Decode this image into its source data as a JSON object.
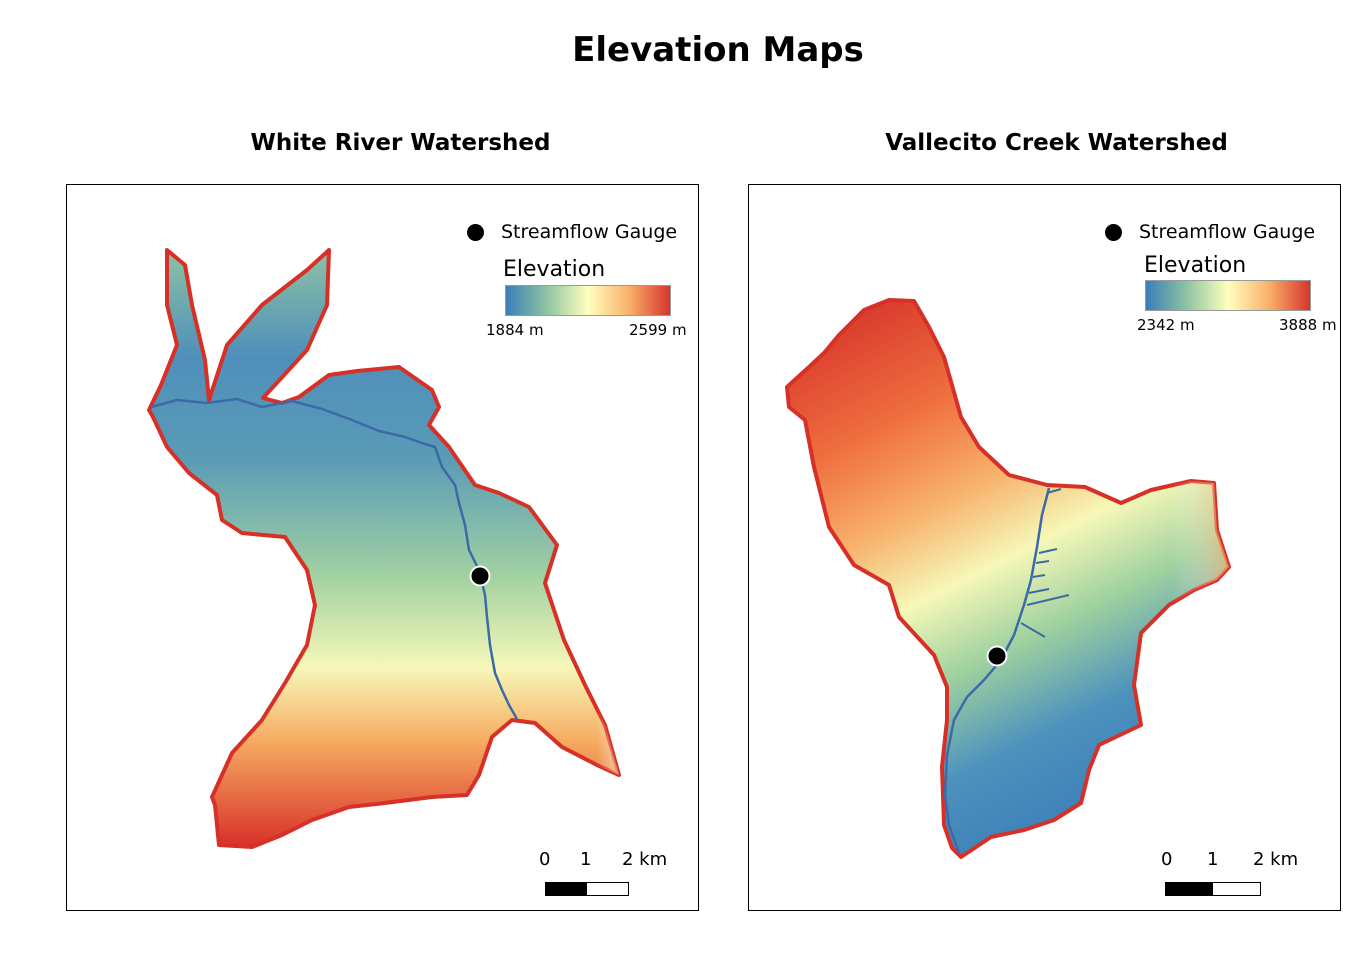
{
  "page": {
    "title": "Elevation Maps"
  },
  "maps": [
    {
      "title": "White River Watershed",
      "legend": {
        "gauge_label": "Streamflow Gauge",
        "elevation_title": "Elevation",
        "min_label": "1884 m",
        "max_label": "2599 m"
      },
      "scale": {
        "labels": [
          "0",
          "1",
          "2 km"
        ]
      }
    },
    {
      "title": "Vallecito Creek Watershed",
      "legend": {
        "gauge_label": "Streamflow Gauge",
        "elevation_title": "Elevation",
        "min_label": "2342 m",
        "max_label": "3888 m"
      },
      "scale": {
        "labels": [
          "0",
          "1",
          "2 km"
        ]
      }
    }
  ],
  "colors": {
    "boundary": "#d73027",
    "river": "#3c6aa8",
    "ramp": [
      "#3a7eb8",
      "#8fc4a3",
      "#ffffbe",
      "#f7b16b",
      "#d7352b"
    ]
  }
}
